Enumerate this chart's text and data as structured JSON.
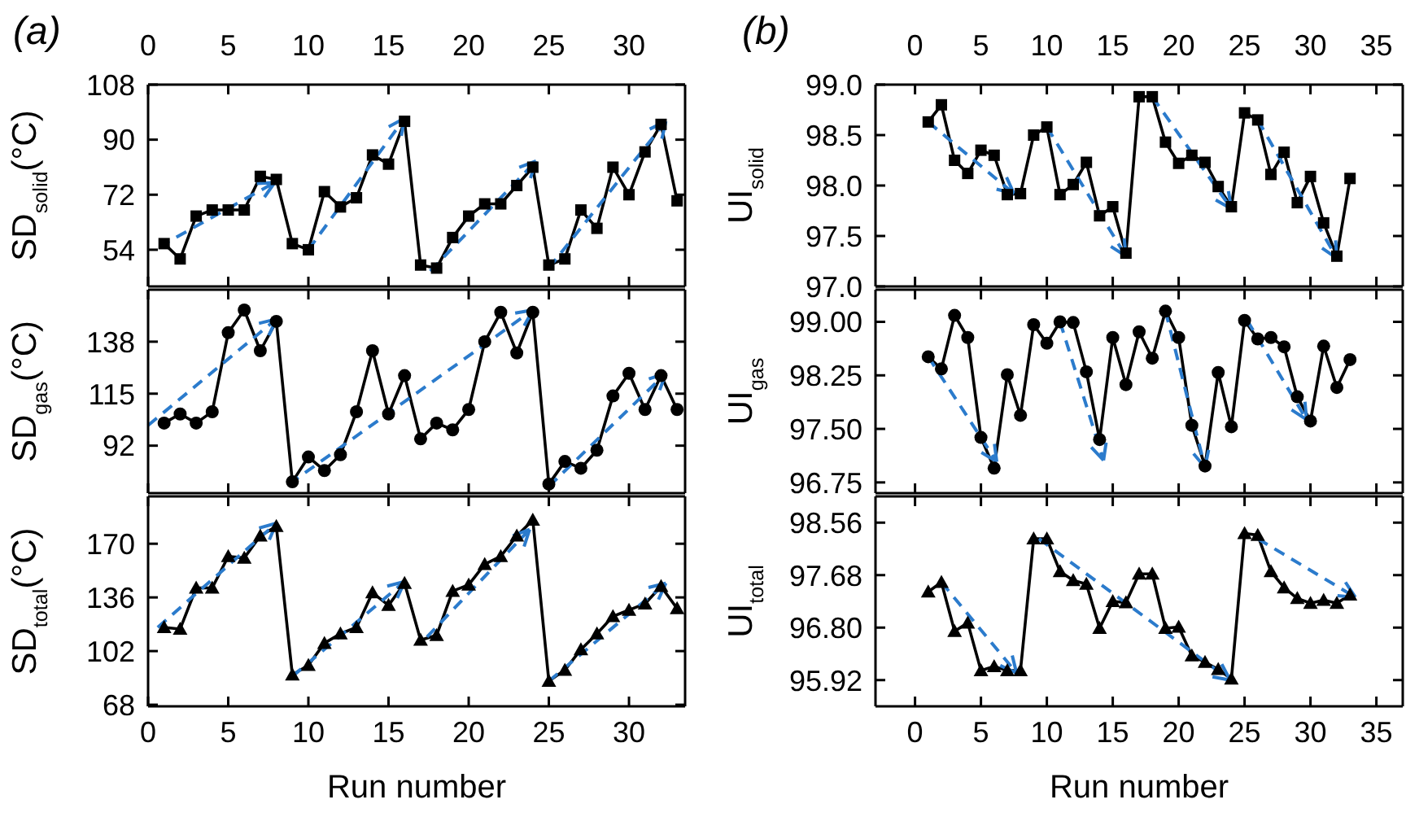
{
  "chart_data": [
    {
      "type": "line",
      "title": "(a)",
      "ylabel": "SD$_{solid}$(°C)",
      "x": [
        1,
        2,
        3,
        4,
        5,
        6,
        7,
        8,
        9,
        10,
        11,
        12,
        13,
        14,
        15,
        16,
        17,
        18,
        19,
        20,
        21,
        22,
        23,
        24,
        25,
        26,
        27,
        28,
        29,
        30,
        31,
        32,
        33
      ],
      "xlim": [
        0,
        33.5
      ],
      "xticks": [
        0,
        5,
        10,
        15,
        20,
        25,
        30
      ],
      "x2lim": [
        0,
        33.5
      ],
      "x2ticks": [
        0,
        5,
        10,
        15,
        20,
        25,
        30
      ],
      "ylim": [
        42,
        108
      ],
      "yticks": [
        54,
        72,
        90,
        108
      ],
      "tick_labels": "y",
      "marker": "square",
      "series": [
        {
          "color": "#000000",
          "values": [
            56,
            51,
            65,
            67,
            67,
            67,
            78,
            77,
            56,
            54,
            73,
            68,
            71,
            85,
            82,
            96,
            49,
            48,
            58,
            65,
            69,
            69,
            75,
            81,
            49,
            51,
            67,
            61,
            81,
            72,
            86,
            95,
            70
          ]
        }
      ]
    },
    {
      "type": "line",
      "ylabel": "SD$_{gas}$(°C)",
      "x": [
        1,
        2,
        3,
        4,
        5,
        6,
        7,
        8,
        9,
        10,
        11,
        12,
        13,
        14,
        15,
        16,
        17,
        18,
        19,
        20,
        21,
        22,
        23,
        24,
        25,
        26,
        27,
        28,
        29,
        30,
        31,
        32,
        33
      ],
      "xlim": [
        0,
        33.5
      ],
      "xticks": [
        0,
        5,
        10,
        15,
        20,
        25,
        30
      ],
      "ylim": [
        71,
        161
      ],
      "yticks": [
        92,
        115,
        138
      ],
      "tick_labels": "y",
      "marker": "circle",
      "series": [
        {
          "color": "#000000",
          "values": [
            102,
            106,
            102,
            107,
            142,
            152,
            134,
            147,
            76,
            87,
            81,
            88,
            107,
            134,
            106,
            123,
            95,
            102,
            99,
            108,
            138,
            151,
            133,
            151,
            75,
            85,
            82,
            90,
            114,
            124,
            108,
            123,
            108
          ]
        }
      ]
    },
    {
      "type": "line",
      "ylabel": "SD$_{total}$(°C)",
      "xlabel": "Run number",
      "x": [
        1,
        2,
        3,
        4,
        5,
        6,
        7,
        8,
        9,
        10,
        11,
        12,
        13,
        14,
        15,
        16,
        17,
        18,
        19,
        20,
        21,
        22,
        23,
        24,
        25,
        26,
        27,
        28,
        29,
        30,
        31,
        32,
        33
      ],
      "xlim": [
        0,
        33.5
      ],
      "xticks": [
        0,
        5,
        10,
        15,
        20,
        25,
        30
      ],
      "ylim": [
        67,
        200
      ],
      "yticks": [
        68,
        102,
        136,
        170
      ],
      "marker": "triangle",
      "series": [
        {
          "color": "#000000",
          "values": [
            117,
            116,
            142,
            142,
            162,
            161,
            175,
            181,
            87,
            93,
            107,
            113,
            117,
            139,
            131,
            145,
            109,
            112,
            140,
            144,
            157,
            162,
            175,
            185,
            83,
            90,
            103,
            113,
            124,
            128,
            132,
            143,
            129
          ]
        }
      ]
    },
    {
      "type": "line",
      "title": "(b)",
      "ylabel": "UI$_{solid}$",
      "x": [
        1,
        2,
        3,
        4,
        5,
        6,
        7,
        8,
        9,
        10,
        11,
        12,
        13,
        14,
        15,
        16,
        17,
        18,
        19,
        20,
        21,
        22,
        23,
        24,
        25,
        26,
        27,
        28,
        29,
        30,
        31,
        32,
        33
      ],
      "xlim": [
        -3,
        37
      ],
      "xticks": [
        0,
        5,
        10,
        15,
        20,
        25,
        30,
        35
      ],
      "x2lim": [
        -3,
        37
      ],
      "x2ticks": [
        0,
        5,
        10,
        15,
        20,
        25,
        30,
        35
      ],
      "ylim": [
        97,
        99
      ],
      "yticks": [
        {
          "value": 97,
          "label": "97.0"
        },
        97.5,
        {
          "value": 98,
          "label": "98.0"
        },
        98.5,
        {
          "value": 99,
          "label": "99.0"
        }
      ],
      "tick_labels": "y",
      "marker": "square",
      "series": [
        {
          "color": "#000000",
          "values": [
            98.63,
            98.8,
            98.25,
            98.12,
            98.35,
            98.3,
            97.91,
            97.92,
            98.5,
            98.58,
            97.91,
            98.01,
            98.23,
            97.7,
            97.79,
            97.33,
            98.88,
            98.88,
            98.43,
            98.22,
            98.3,
            98.23,
            97.99,
            97.79,
            98.72,
            98.65,
            98.11,
            98.33,
            97.83,
            98.09,
            97.63,
            97.3,
            98.07
          ]
        }
      ]
    },
    {
      "type": "line",
      "ylabel": "UI$_{gas}$",
      "x": [
        1,
        2,
        3,
        4,
        5,
        6,
        7,
        8,
        9,
        10,
        11,
        12,
        13,
        14,
        15,
        16,
        17,
        18,
        19,
        20,
        21,
        22,
        23,
        24,
        25,
        26,
        27,
        28,
        29,
        30,
        31,
        32,
        33
      ],
      "xlim": [
        -3,
        37
      ],
      "xticks": [
        0,
        5,
        10,
        15,
        20,
        25,
        30,
        35
      ],
      "ylim": [
        96.6,
        99.45
      ],
      "yticks": [
        96.75,
        {
          "value": 97.5,
          "label": "97.50"
        },
        98.25,
        {
          "value": 99,
          "label": "99.00"
        }
      ],
      "tick_labels": "y",
      "marker": "circle",
      "series": [
        {
          "color": "#000000",
          "values": [
            98.51,
            98.34,
            99.09,
            98.78,
            97.38,
            96.95,
            98.26,
            97.69,
            98.96,
            98.7,
            99.0,
            98.99,
            98.3,
            97.35,
            98.78,
            98.12,
            98.86,
            98.49,
            99.15,
            98.78,
            97.55,
            96.98,
            98.29,
            97.53,
            99.02,
            98.76,
            98.78,
            98.65,
            97.95,
            97.61,
            98.66,
            98.08,
            98.47
          ]
        }
      ]
    },
    {
      "type": "line",
      "ylabel": "UI$_{total}$",
      "xlabel": "Run number",
      "x": [
        1,
        2,
        3,
        4,
        5,
        6,
        7,
        8,
        9,
        10,
        11,
        12,
        13,
        14,
        15,
        16,
        17,
        18,
        19,
        20,
        21,
        22,
        23,
        24,
        25,
        26,
        27,
        28,
        29,
        30,
        31,
        32,
        33
      ],
      "xlim": [
        -3,
        37
      ],
      "xticks": [
        0,
        5,
        10,
        15,
        20,
        25,
        30,
        35
      ],
      "ylim": [
        95.48,
        99
      ],
      "yticks": [
        95.92,
        {
          "value": 96.8,
          "label": "96.80"
        },
        97.68,
        98.56
      ],
      "marker": "triangle",
      "series": [
        {
          "color": "#000000",
          "values": [
            97.4,
            97.56,
            96.74,
            96.88,
            96.08,
            96.15,
            96.08,
            96.08,
            98.29,
            98.29,
            97.74,
            97.59,
            97.53,
            96.79,
            97.24,
            97.22,
            97.7,
            97.7,
            96.79,
            96.81,
            96.33,
            96.22,
            96.1,
            95.94,
            98.38,
            98.35,
            97.74,
            97.47,
            97.29,
            97.21,
            97.26,
            97.21,
            97.35
          ]
        }
      ]
    }
  ]
}
